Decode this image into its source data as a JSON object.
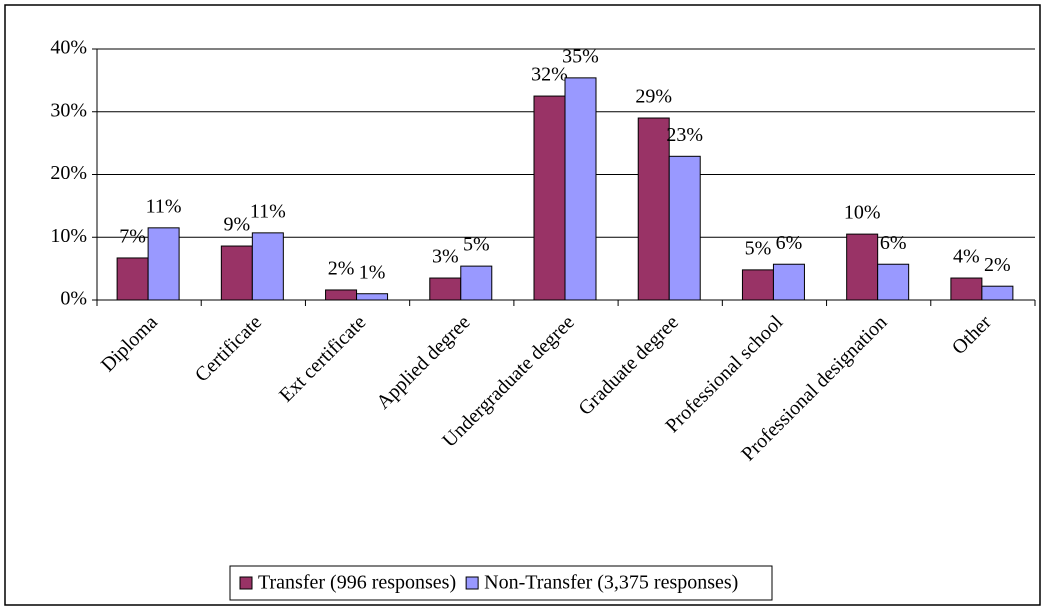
{
  "chart_data": {
    "type": "bar",
    "categories": [
      "Diploma",
      "Certificate",
      "Ext certificate",
      "Applied degree",
      "Undergraduate degree",
      "Graduate degree",
      "Professional school",
      "Professional designation",
      "Other"
    ],
    "series": [
      {
        "name": "Transfer (996 responses)",
        "color": "#993366",
        "values": [
          6.7,
          8.6,
          1.6,
          3.5,
          32.5,
          29.0,
          4.8,
          10.5,
          3.5
        ],
        "value_labels": [
          "7%",
          "9%",
          "2%",
          "3%",
          "32%",
          "29%",
          "5%",
          "10%",
          "4%"
        ]
      },
      {
        "name": "Non-Transfer (3,375 responses)",
        "color": "#9999ff",
        "values": [
          11.5,
          10.7,
          1.0,
          5.4,
          35.4,
          22.9,
          5.7,
          5.7,
          2.2
        ],
        "value_labels": [
          "11%",
          "11%",
          "1%",
          "5%",
          "35%",
          "23%",
          "6%",
          "6%",
          "2%"
        ]
      }
    ],
    "ylim": [
      0,
      40
    ],
    "yticks": [
      {
        "value": 0,
        "label": "0%"
      },
      {
        "value": 10,
        "label": "10%"
      },
      {
        "value": 20,
        "label": "20%"
      },
      {
        "value": 30,
        "label": "30%"
      },
      {
        "value": 40,
        "label": "40%"
      }
    ],
    "grid": true,
    "legend": "bottom"
  }
}
